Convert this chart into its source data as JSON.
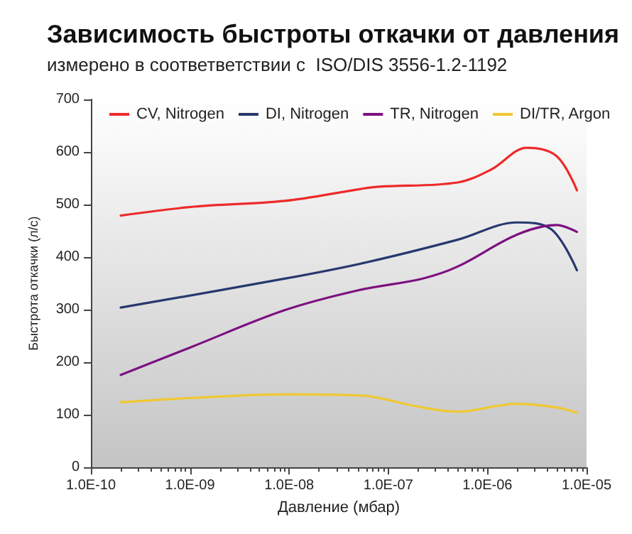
{
  "chart_data": {
    "type": "line",
    "title": "Зависимость быстроты откачки от давления",
    "subtitle": "измерено в соответветствии с  ISO/DIS 3556-1.2-1192",
    "xlabel": "Давление (мбар)",
    "ylabel": "Быстрота откачки (л/с)",
    "log": "x",
    "xlim": [
      1e-10,
      1e-05
    ],
    "xticks": [
      {
        "value": 1e-10,
        "label": "1.0E-10"
      },
      {
        "value": 1e-09,
        "label": "1.0E-09"
      },
      {
        "value": 1e-08,
        "label": "1.0E-08"
      },
      {
        "value": 1e-07,
        "label": "1.0E-07"
      },
      {
        "value": 1e-06,
        "label": "1.0E-06"
      },
      {
        "value": 1e-05,
        "label": "1.0E-05"
      }
    ],
    "ylim": [
      0,
      700
    ],
    "yticks": [
      0,
      100,
      200,
      300,
      400,
      500,
      600,
      700
    ],
    "grid": false,
    "legend": "top",
    "marker": "none",
    "line_style": "solid",
    "series": [
      {
        "name": "CV, Nitrogen",
        "color": "#ee2a2a",
        "x": [
          2e-10,
          1.1e-09,
          9e-09,
          5e-08,
          8e-08,
          5e-07,
          1.1e-06,
          2.5e-06,
          5e-06,
          8e-06
        ],
        "values": [
          479,
          496,
          507,
          529,
          534,
          542,
          567,
          608,
          592,
          527
        ]
      },
      {
        "name": "DI, Nitrogen",
        "color": "#27386e",
        "x": [
          2e-10,
          9e-09,
          6e-08,
          5e-07,
          2e-06,
          4.4e-06,
          8e-06
        ],
        "values": [
          304,
          359,
          390,
          433,
          466,
          453,
          375
        ]
      },
      {
        "name": "TR, Nitrogen",
        "color": "#7d1080",
        "x": [
          2e-10,
          1e-09,
          9e-09,
          5e-08,
          2.2e-07,
          5e-07,
          2e-06,
          5e-06,
          8e-06
        ],
        "values": [
          176,
          228,
          299,
          337,
          359,
          382,
          443,
          461,
          448
        ]
      },
      {
        "name": "DI/TR, Argon",
        "color": "#f0c832",
        "x": [
          2e-10,
          1e-09,
          9e-09,
          5e-08,
          2.2e-07,
          5e-07,
          2e-06,
          5e-06,
          8e-06
        ],
        "values": [
          124,
          132,
          139,
          137,
          114,
          106,
          121,
          114,
          104
        ]
      }
    ]
  }
}
